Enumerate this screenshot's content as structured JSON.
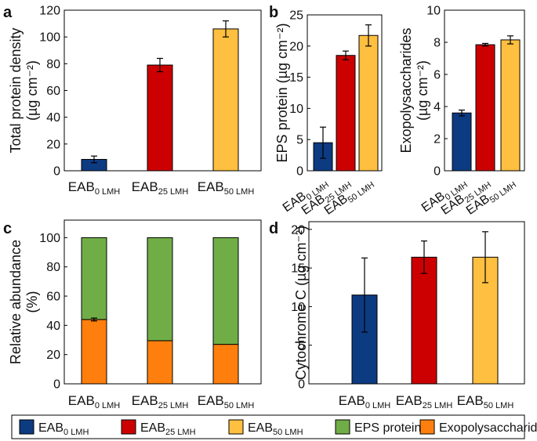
{
  "colors": {
    "eab0": "#0d3b82",
    "eab25": "#cc0000",
    "eab50": "#ffbf40",
    "eps": "#70ad47",
    "exo": "#ff7f0e"
  },
  "legend": {
    "eab0_base": "EAB",
    "eab0_sub": "0 LMH",
    "eab25_base": "EAB",
    "eab25_sub": "25 LMH",
    "eab50_base": "EAB",
    "eab50_sub": "50 LMH",
    "eps": "EPS protein",
    "exo": "Exopolysaccharides"
  },
  "chart_data": [
    {
      "panel": "a",
      "type": "bar",
      "categories": [
        {
          "base": "EAB",
          "sub": "0 LMH"
        },
        {
          "base": "EAB",
          "sub": "25 LMH"
        },
        {
          "base": "EAB",
          "sub": "50 LMH"
        }
      ],
      "values": [
        8.5,
        79,
        106
      ],
      "errors": [
        2.5,
        5,
        6
      ],
      "ylabel_line1": "Total protein density",
      "ylabel_line2": "(µg cm⁻²)",
      "ylim": [
        0,
        120
      ],
      "yticks": [
        0,
        20,
        40,
        60,
        80,
        100,
        120
      ]
    },
    {
      "panel": "b",
      "type": "bar",
      "categories": [
        {
          "base": "EAB",
          "sub": "0 LMH"
        },
        {
          "base": "EAB",
          "sub": "25 LMH"
        },
        {
          "base": "EAB",
          "sub": "50 LMH"
        }
      ],
      "values": [
        4.5,
        18.5,
        21.7
      ],
      "errors": [
        2.5,
        0.7,
        1.7
      ],
      "ylabel_line1": "EPS protein (µg cm⁻²)",
      "ylim": [
        0,
        25
      ],
      "yticks": [
        0,
        5,
        10,
        15,
        20,
        25
      ]
    },
    {
      "panel": "b2",
      "type": "bar",
      "categories": [
        {
          "base": "EAB",
          "sub": "0 LMH"
        },
        {
          "base": "EAB",
          "sub": "25 LMH"
        },
        {
          "base": "EAB",
          "sub": "50 LMH"
        }
      ],
      "values": [
        3.6,
        7.85,
        8.15
      ],
      "errors": [
        0.18,
        0.08,
        0.25
      ],
      "ylabel_line1": "Exopolysaccharides",
      "ylabel_line2": "(µg cm⁻²)",
      "ylim": [
        0,
        10
      ],
      "yticks": [
        0,
        2,
        4,
        6,
        8,
        10
      ]
    },
    {
      "panel": "c",
      "type": "bar",
      "stacked": true,
      "categories": [
        {
          "base": "EAB",
          "sub": "0 LMH"
        },
        {
          "base": "EAB",
          "sub": "25 LMH"
        },
        {
          "base": "EAB",
          "sub": "50 LMH"
        }
      ],
      "series": [
        {
          "name": "Exopolysaccharides",
          "values": [
            44,
            29.5,
            27
          ],
          "errors": [
            1,
            0,
            0
          ]
        },
        {
          "name": "EPS protein",
          "values": [
            56,
            70.5,
            73
          ]
        }
      ],
      "ylabel_line1": "Relative abundance",
      "ylabel_line2": "(%)",
      "ylim": [
        0,
        112
      ],
      "yticks": [
        0,
        20,
        40,
        60,
        80,
        100
      ]
    },
    {
      "panel": "d",
      "type": "bar",
      "categories": [
        {
          "base": "EAB",
          "sub": "0 LMH"
        },
        {
          "base": "EAB",
          "sub": "25 LMH"
        },
        {
          "base": "EAB",
          "sub": "50 LMH"
        }
      ],
      "values": [
        11.5,
        16.4,
        16.4
      ],
      "errors": [
        4.8,
        2.1,
        3.3
      ],
      "ylabel_line1": "Cytochrome C (µg cm⁻²)",
      "ylim": [
        0,
        21
      ],
      "yticks": [
        0,
        5,
        10,
        15,
        20
      ]
    }
  ]
}
